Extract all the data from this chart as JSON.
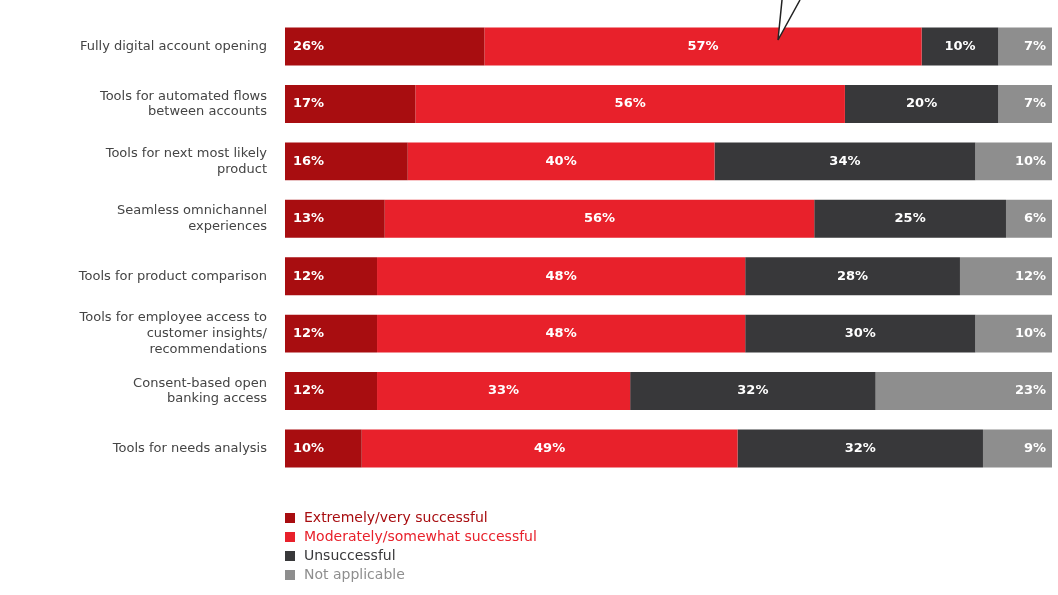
{
  "chart_data": {
    "type": "bar",
    "orientation": "horizontal",
    "stacked": true,
    "categories": [
      "Fully digital account opening",
      "Tools for automated flows between accounts",
      "Tools for next most likely product",
      "Seamless omnichannel experiences",
      "Tools for product comparison",
      "Tools for employee access to customer insights/ recommendations",
      "Consent-based open banking access",
      "Tools for needs analysis"
    ],
    "series": [
      {
        "name": "Extremely/very successful",
        "color": "#a80d10",
        "values": [
          26,
          17,
          16,
          13,
          12,
          12,
          12,
          10
        ],
        "value_labels": [
          "26%",
          "17%",
          "16%",
          "13%",
          "12%",
          "12%",
          "12%",
          "10%"
        ]
      },
      {
        "name": "Moderately/somewhat successful",
        "color": "#e8212b",
        "values": [
          57,
          56,
          40,
          56,
          48,
          48,
          33,
          49
        ],
        "value_labels": [
          "57%",
          "56%",
          "40%",
          "56%",
          "48%",
          "48%",
          "33%",
          "49%"
        ]
      },
      {
        "name": "Unsuccessful",
        "color": "#38383a",
        "values": [
          10,
          20,
          34,
          25,
          28,
          30,
          32,
          32
        ],
        "value_labels": [
          "10%",
          "20%",
          "34%",
          "25%",
          "28%",
          "30%",
          "32%",
          "32%"
        ]
      },
      {
        "name": "Not applicable",
        "color": "#8e8e8e",
        "values": [
          7,
          7,
          10,
          6,
          12,
          10,
          23,
          9
        ],
        "value_labels": [
          "7%",
          "7%",
          "10%",
          "6%",
          "12%",
          "10%",
          "23%",
          "9%"
        ]
      }
    ],
    "xlim": [
      0,
      100
    ],
    "tick_labels": "y",
    "legend": "bottom left"
  }
}
